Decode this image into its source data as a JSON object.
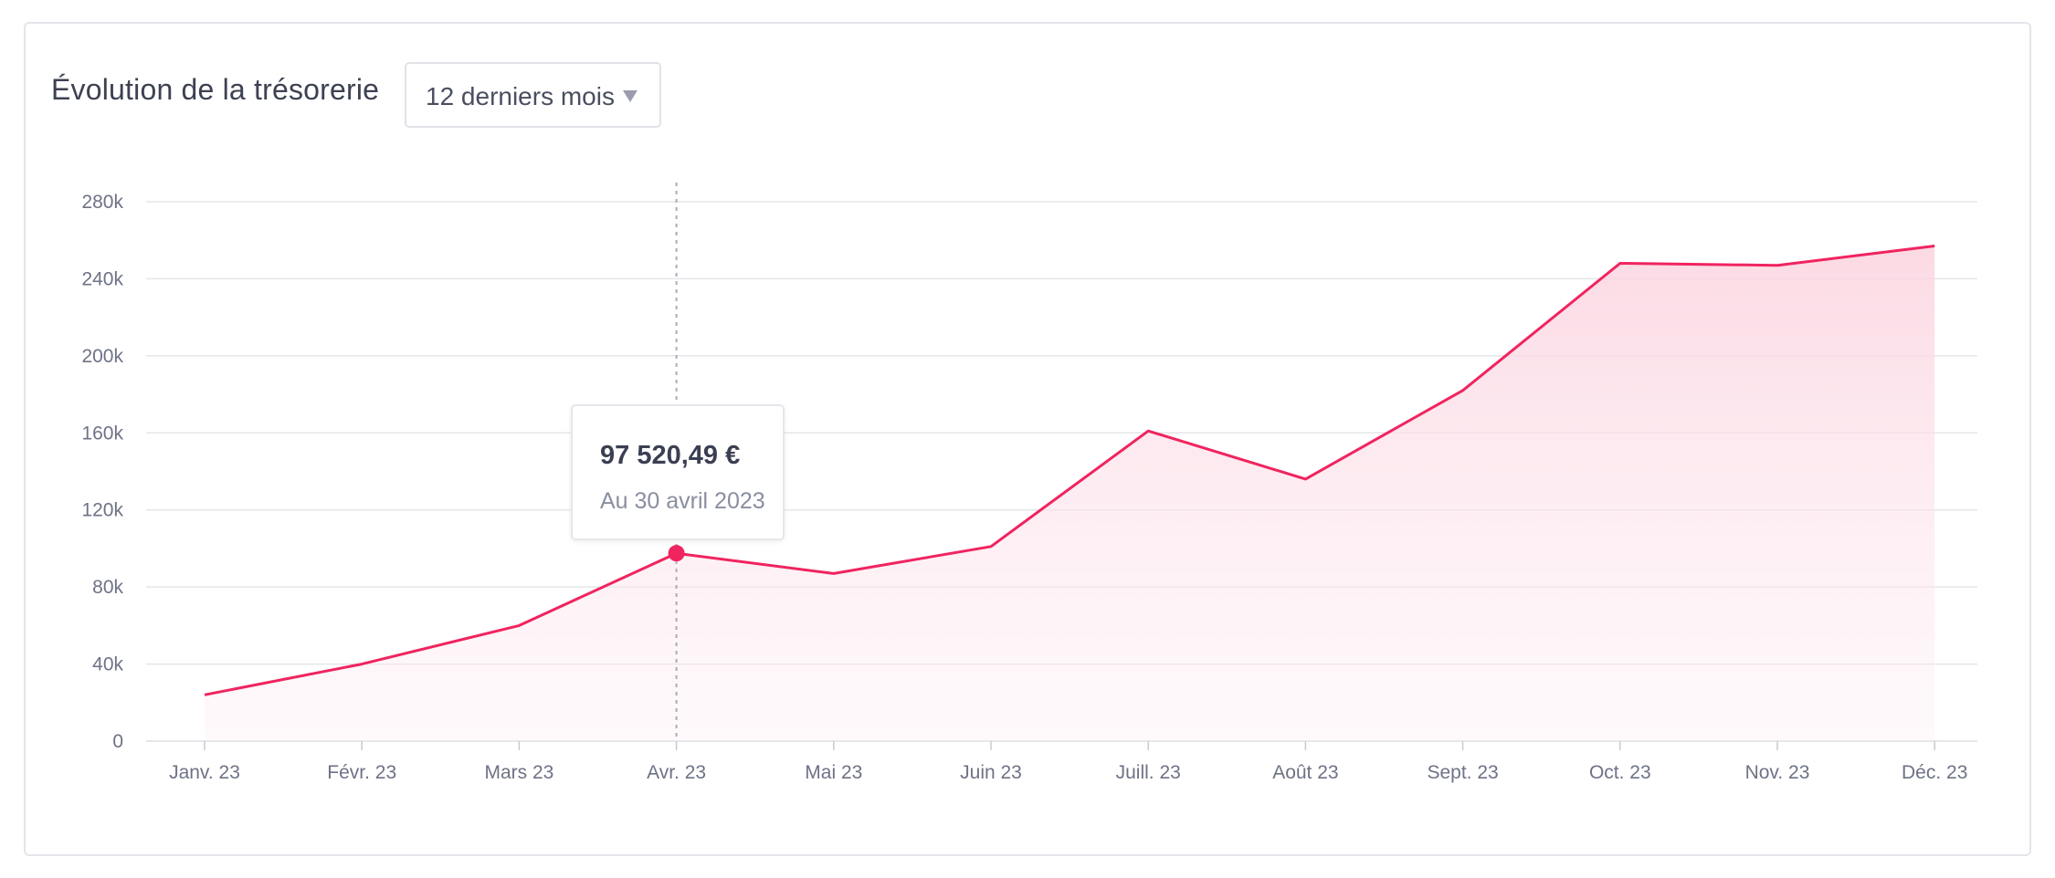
{
  "header": {
    "title": "Évolution de la trésorerie",
    "period_select": {
      "value": "12 derniers mois"
    }
  },
  "tooltip": {
    "value": "97 520,49 €",
    "date": "Au 30 avril 2023",
    "index": 3
  },
  "colors": {
    "line": "#f0245f",
    "fill": "#fde3ea",
    "grid": "#e5e6ea",
    "axis_text": "#6e7286"
  },
  "chart_data": {
    "type": "area",
    "title": "Évolution de la trésorerie",
    "categories": [
      "Janv. 23",
      "Févr. 23",
      "Mars 23",
      "Avr. 23",
      "Mai 23",
      "Juin 23",
      "Juill. 23",
      "Août 23",
      "Sept. 23",
      "Oct. 23",
      "Nov. 23",
      "Déc. 23"
    ],
    "series": [
      {
        "values": [
          24000,
          40000,
          60000,
          97520.49,
          87000,
          101000,
          161000,
          136000,
          182000,
          248000,
          247000,
          257000
        ]
      }
    ],
    "yticks": [
      0,
      40000,
      80000,
      120000,
      160000,
      200000,
      240000,
      280000
    ],
    "ytick_labels": [
      "0",
      "40k",
      "80k",
      "120k",
      "160k",
      "200k",
      "240k",
      "280k"
    ],
    "ylim": [
      0,
      280000
    ],
    "grid": true,
    "legend": "none"
  }
}
